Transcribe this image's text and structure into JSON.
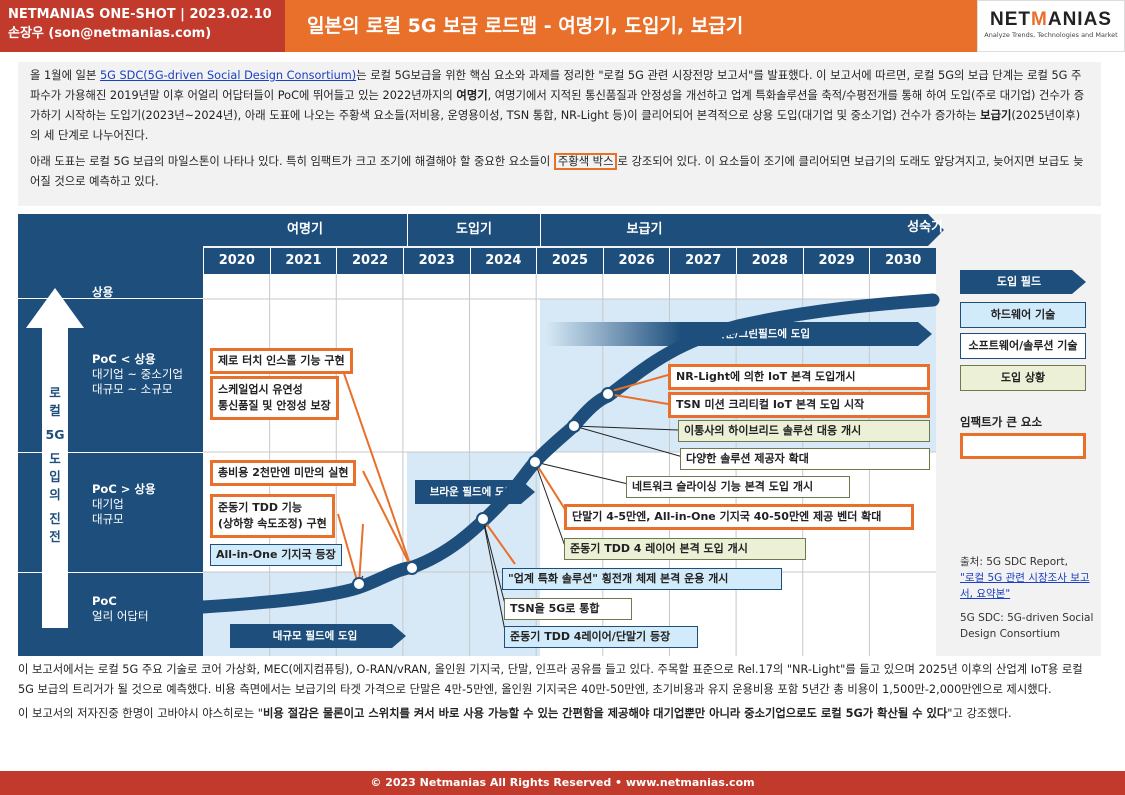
{
  "header": {
    "brand_line": "NETMANIAS ONE-SHOT  |  2023.02.10",
    "author_line": "손장우 (son@netmanias.com)",
    "title": "일본의 로컬 5G 보급 로드맵 - 여명기, 도입기, 보급기",
    "logo_text": "NETMANIAS",
    "logo_tagline": "Analyze Trends, Technologies and Market"
  },
  "intro": {
    "p1_a": "올 1월에 일본 ",
    "p1_link": "5G SDC(5G-driven Social Design Consortium)",
    "p1_b": "는 로컬 5G보급을 위한 핵심 요소와 과제를 정리한 \"로컬 5G 관련 시장전망 보고서\"를 발표했다.  이 보고서에 따르면, 로컬 5G의 보급 단계는 로컬 5G 주파수가 가용해진 2019년말 이후 어얼리 어답터들이 PoC에 뛰어들고 있는 2022년까지의 ",
    "p1_bold1": "여명기",
    "p1_c": ", 여명기에서 지적된 통신품질과 안정성을 개선하고 업계 특화솔루션을 축적/수평전개를 통해 하여 도입(주로 대기업) 건수가 증가하기 시작하는 도입기(2023년~2024년), 아래 도표에 나오는 주황색 요소들(저비용, 운영용이성, TSN 통합, NR-Light 등)이 클리어되어 본격적으로 상용 도입(대기업 및 중소기업) 건수가 증가하는 ",
    "p1_bold2": "보급기",
    "p1_d": "(2025년이후)의 세 단계로 나누어진다.",
    "p2_a": "아래 도표는 로컬 5G 보급의 마일스톤이 나타나 있다. 특히 임팩트가 크고 조기에 해결해야 할 중요한 요소들이 ",
    "p2_hl": "주황색 박스",
    "p2_b": "로 강조되어 있다. 이 요소들이 조기에 클리어되면 보급기의 도래도 앞당겨지고, 늦어지면 보급도 늦어질 것으로 예측하고 있다."
  },
  "diagram": {
    "phases": [
      "여명기",
      "도입기",
      "보급기",
      "성숙기"
    ],
    "years": [
      "2020",
      "2021",
      "2022",
      "2023",
      "2024",
      "2025",
      "2026",
      "2027",
      "2028",
      "2029",
      "2030"
    ],
    "axis_label": [
      "로",
      "컬",
      "5G",
      "도",
      "입",
      "의",
      "진",
      "전"
    ],
    "rows": [
      {
        "title": "상용",
        "sub1": "",
        "sub2": ""
      },
      {
        "title": "PoC < 상용",
        "sub1": "대기업 ~ 중소기업",
        "sub2": "대규모 ~ 소규모"
      },
      {
        "title": "PoC > 상용",
        "sub1": "대기업",
        "sub2": "대규모"
      },
      {
        "title": "PoC",
        "sub1": "얼리 어답터",
        "sub2": ""
      }
    ],
    "fields": {
      "large": "대규모 필드에 도입",
      "brown": "브라운 필드에 도입",
      "browngreen": "브라운/그린필드에 도입"
    },
    "boxes": {
      "b1": "제로 터치 인스톨 기능 구현",
      "b2a": "스케일업시 유연성",
      "b2b": "통신품질 및 안정성 보장",
      "b3": "총비용 2천만엔 미만의 실현",
      "b4a": "준동기 TDD 기능",
      "b4b": "(상하향 속도조정) 구현",
      "b5": "All-in-One 기지국 등장",
      "b6": "NR-Light에 의한 IoT 본격 도입개시",
      "b7": "TSN 미션 크리티컬 IoT 본격 도입 시작",
      "b8": "이통사의 하이브리드 솔루션 대응 개시",
      "b9": "다양한 솔루션 제공자 확대",
      "b10": "네트워크 슬라이싱 기능 본격 도입 개시",
      "b11": "단말기 4-5만엔, All-in-One 기지국 40-50만엔 제공 벤더 확대",
      "b12": "준동기 TDD 4 레이어 본격 도입 개시",
      "b13": "\"업계 특화 솔루션\" 횡전개 체제 본격 운용 개시",
      "b14": "TSN을 5G로 통합",
      "b15": "준동기 TDD 4레이어/단말기 등장"
    },
    "legend": {
      "title": "도입 필드",
      "hw": "하드웨어 기술",
      "sw": "소프트웨어/솔루션 기술",
      "intro": "도입 상황",
      "impact": "임팩트가 큰 요소"
    },
    "source": {
      "label": "출처: 5G SDC Report,",
      "link": "\"로컬 5G 관련 시장조사 보고서, 요약본\"",
      "note": "5G SDC: 5G-driven Social Design Consortium"
    },
    "colors": {
      "navy": "#1e4f7c",
      "orange": "#e8702a",
      "red": "#c23a2b"
    }
  },
  "bottom": {
    "p1": "이 보고서에서는 로컬 5G 주요 기술로 코어 가상화, MEC(에지컴퓨팅), O-RAN/vRAN, 올인원 기지국, 단말, 인프라 공유를 들고 있다. 주목할 표준으로 Rel.17의 \"NR-Light\"를 들고 있으며 2025년 이후의 산업계 IoT용 로컬 5G 보급의 트리거가 될 것으로 예측했다. 비용 측면에서는 보급기의 타겟 가격으로 단말은 4만-5만엔, 올인원 기지국은 40만-50만엔, 초기비용과 유지 운용비용 포함 5년간 총 비용이 1,500만-2,000만엔으로 제시했다.",
    "p2_a": "이 보고서의 저자진중 한명이 고바야시 야스히로는 \"",
    "p2_bold": "비용 절감은 물론이고 스위치를 켜서 바로 사용 가능할 수 있는 간편함을 제공해야 대기업뿐만 아니라 중소기업으로도 로컬 5G가 확산될 수 있다",
    "p2_b": "\"고 강조했다."
  },
  "footer": "© 2023 Netmanias All Rights Reserved • www.netmanias.com"
}
